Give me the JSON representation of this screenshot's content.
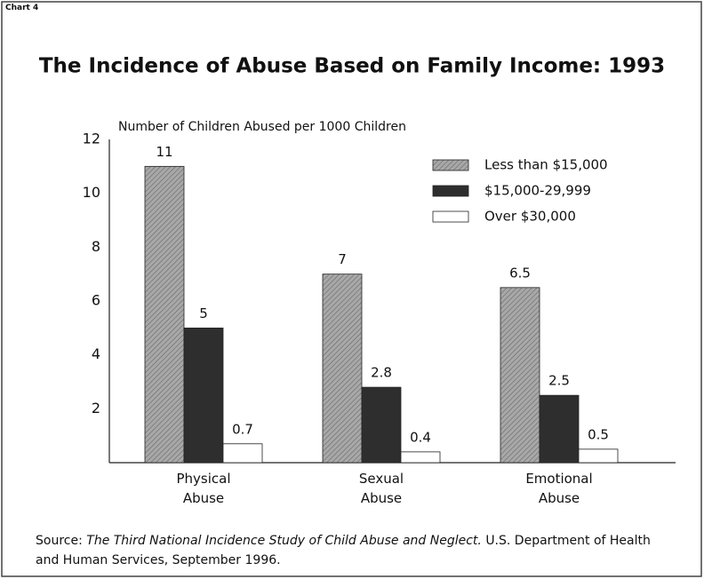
{
  "chart_data": {
    "type": "bar",
    "corner_label": "Chart 4",
    "title": "The Incidence of Abuse Based on Family Income: 1993",
    "y_label": "Number of Children Abused per 1000 Children",
    "categories": [
      "Physical Abuse",
      "Sexual Abuse",
      "Emotional Abuse"
    ],
    "series": [
      {
        "name": "Less than $15,000",
        "color": "#a8a8a8",
        "values": [
          11,
          7,
          6.5
        ]
      },
      {
        "name": "$15,000-29,999",
        "color": "#2e2e2e",
        "values": [
          5,
          2.8,
          2.5
        ]
      },
      {
        "name": "Over $30,000",
        "color": "#ffffff",
        "values": [
          0.7,
          0.4,
          0.5
        ]
      }
    ],
    "ylim": [
      0,
      12
    ],
    "yticks": [
      2,
      4,
      6,
      8,
      10,
      12
    ],
    "legend": "upper right",
    "source": {
      "label": "Source:",
      "title": "The Third National Incidence Study of Child Abuse and Neglect.",
      "text": "U.S. Department of Health and Human Services, September 1996."
    }
  }
}
